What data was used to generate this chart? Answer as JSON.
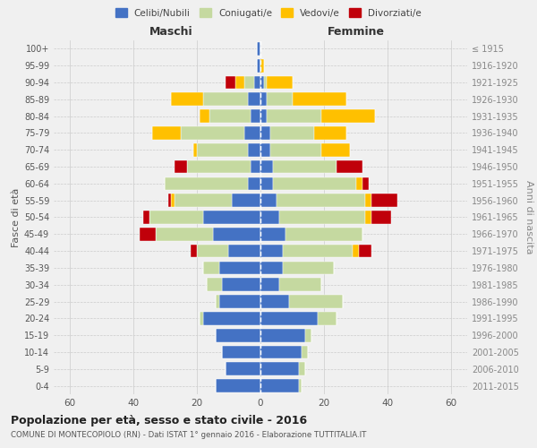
{
  "age_groups": [
    "0-4",
    "5-9",
    "10-14",
    "15-19",
    "20-24",
    "25-29",
    "30-34",
    "35-39",
    "40-44",
    "45-49",
    "50-54",
    "55-59",
    "60-64",
    "65-69",
    "70-74",
    "75-79",
    "80-84",
    "85-89",
    "90-94",
    "95-99",
    "100+"
  ],
  "birth_years": [
    "2011-2015",
    "2006-2010",
    "2001-2005",
    "1996-2000",
    "1991-1995",
    "1986-1990",
    "1981-1985",
    "1976-1980",
    "1971-1975",
    "1966-1970",
    "1961-1965",
    "1956-1960",
    "1951-1955",
    "1946-1950",
    "1941-1945",
    "1936-1940",
    "1931-1935",
    "1926-1930",
    "1921-1925",
    "1916-1920",
    "≤ 1915"
  ],
  "maschi": {
    "celibi": [
      14,
      11,
      12,
      14,
      18,
      13,
      12,
      13,
      10,
      15,
      18,
      9,
      4,
      3,
      4,
      5,
      3,
      4,
      2,
      1,
      1
    ],
    "coniugati": [
      0,
      0,
      0,
      0,
      1,
      1,
      5,
      5,
      10,
      18,
      17,
      18,
      26,
      20,
      16,
      20,
      13,
      14,
      3,
      0,
      0
    ],
    "vedovi": [
      0,
      0,
      0,
      0,
      0,
      0,
      0,
      0,
      0,
      0,
      0,
      1,
      0,
      0,
      1,
      9,
      3,
      10,
      3,
      0,
      0
    ],
    "divorziati": [
      0,
      0,
      0,
      0,
      0,
      0,
      0,
      0,
      2,
      5,
      2,
      1,
      0,
      4,
      0,
      0,
      0,
      0,
      3,
      0,
      0
    ]
  },
  "femmine": {
    "nubili": [
      12,
      12,
      13,
      14,
      18,
      9,
      6,
      7,
      7,
      8,
      6,
      5,
      4,
      4,
      3,
      3,
      2,
      2,
      1,
      0,
      0
    ],
    "coniugate": [
      1,
      2,
      2,
      2,
      6,
      17,
      13,
      16,
      22,
      24,
      27,
      28,
      26,
      20,
      16,
      14,
      17,
      8,
      1,
      0,
      0
    ],
    "vedove": [
      0,
      0,
      0,
      0,
      0,
      0,
      0,
      0,
      2,
      0,
      2,
      2,
      2,
      0,
      9,
      10,
      17,
      17,
      8,
      1,
      0
    ],
    "divorziate": [
      0,
      0,
      0,
      0,
      0,
      0,
      0,
      0,
      4,
      0,
      6,
      8,
      2,
      8,
      0,
      0,
      0,
      0,
      0,
      0,
      0
    ]
  },
  "color_celibi": "#4472c4",
  "color_coniugati": "#c5d9a0",
  "color_vedovi": "#ffc000",
  "color_divorziati": "#c0000a",
  "color_bg": "#f0f0f0",
  "xlim": 65,
  "title": "Popolazione per età, sesso e stato civile - 2016",
  "subtitle": "COMUNE DI MONTECOPIOLO (RN) - Dati ISTAT 1° gennaio 2016 - Elaborazione TUTTITALIA.IT",
  "ylabel_left": "Fasce di età",
  "ylabel_right": "Anni di nascita"
}
